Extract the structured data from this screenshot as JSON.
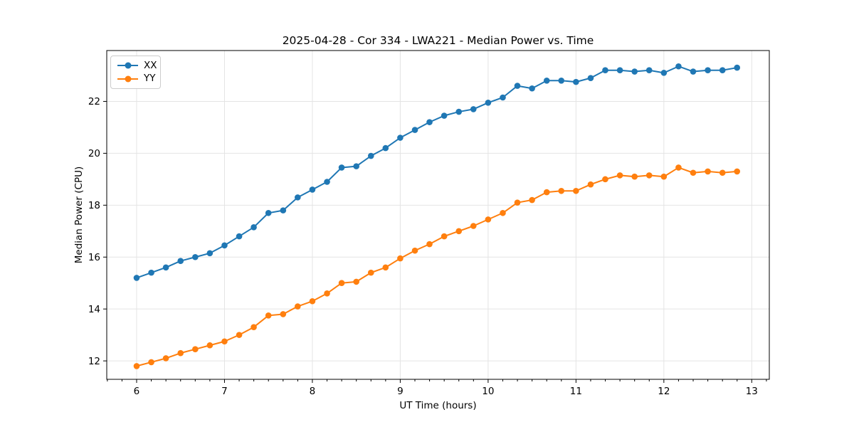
{
  "figure": {
    "background": "#ffffff",
    "grid_color": "#e4e4e4",
    "spine_color": "#000000",
    "text_color": "#000000"
  },
  "chart_data": {
    "type": "line",
    "title": "2025-04-28 - Cor 334 - LWA221 - Median Power vs. Time",
    "xlabel": "UT Time (hours)",
    "ylabel": "Median Power (CPU)",
    "xlim": [
      5.66,
      13.2
    ],
    "ylim": [
      11.29,
      23.96
    ],
    "x_ticks": [
      6,
      7,
      8,
      9,
      10,
      11,
      12,
      13
    ],
    "y_ticks": [
      12,
      14,
      16,
      18,
      20,
      22
    ],
    "x_minor_step": 0.16667,
    "grid": true,
    "legend_position": "upper left",
    "x": [
      6.0,
      6.167,
      6.333,
      6.5,
      6.667,
      6.833,
      7.0,
      7.167,
      7.333,
      7.5,
      7.667,
      7.833,
      8.0,
      8.167,
      8.333,
      8.5,
      8.667,
      8.833,
      9.0,
      9.167,
      9.333,
      9.5,
      9.667,
      9.833,
      10.0,
      10.167,
      10.333,
      10.5,
      10.667,
      10.833,
      11.0,
      11.167,
      11.333,
      11.5,
      11.667,
      11.833,
      12.0,
      12.167,
      12.333,
      12.5,
      12.667,
      12.833
    ],
    "series": [
      {
        "name": "XX",
        "color": "#1f77b4",
        "values": [
          15.2,
          15.4,
          15.6,
          15.85,
          16.0,
          16.15,
          16.45,
          16.8,
          17.15,
          17.7,
          17.8,
          18.3,
          18.6,
          18.9,
          19.45,
          19.5,
          19.9,
          20.2,
          20.6,
          20.9,
          21.2,
          21.45,
          21.6,
          21.7,
          21.95,
          22.15,
          22.6,
          22.5,
          22.8,
          22.8,
          22.75,
          22.9,
          23.2,
          23.2,
          23.15,
          23.2,
          23.1,
          23.35,
          23.15,
          23.2,
          23.2,
          23.3
        ]
      },
      {
        "name": "YY",
        "color": "#ff7f0e",
        "values": [
          11.8,
          11.95,
          12.1,
          12.3,
          12.45,
          12.6,
          12.75,
          13.0,
          13.3,
          13.75,
          13.8,
          14.1,
          14.3,
          14.6,
          15.0,
          15.05,
          15.4,
          15.6,
          15.95,
          16.25,
          16.5,
          16.8,
          17.0,
          17.2,
          17.45,
          17.7,
          18.1,
          18.2,
          18.5,
          18.55,
          18.55,
          18.8,
          19.0,
          19.15,
          19.1,
          19.15,
          19.1,
          19.45,
          19.25,
          19.3,
          19.25,
          19.3
        ]
      }
    ]
  }
}
